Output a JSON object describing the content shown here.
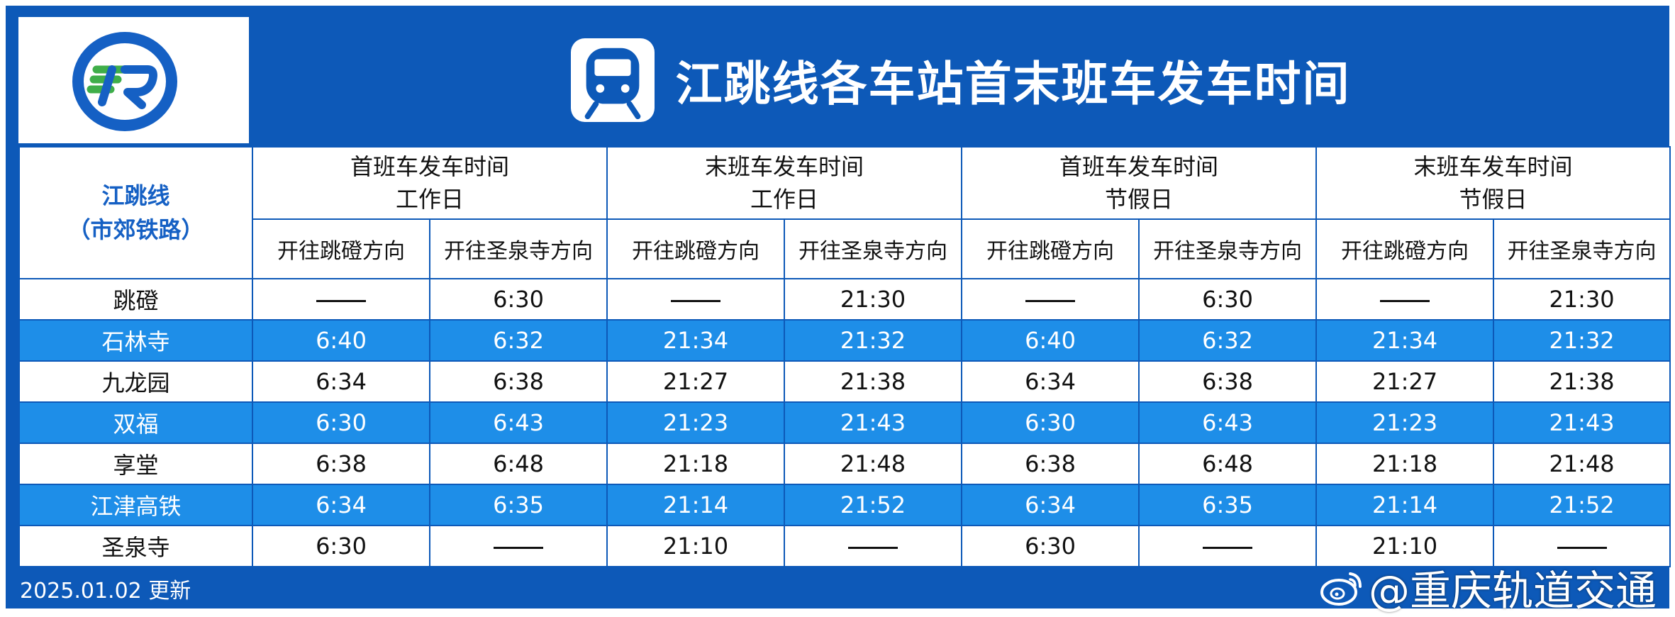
{
  "title": "江跳线各车站首末班车发车时间",
  "line": {
    "name": "江跳线",
    "subtitle": "（市郊铁路）"
  },
  "groups": [
    {
      "line1": "首班车发车时间",
      "line2": "工作日"
    },
    {
      "line1": "末班车发车时间",
      "line2": "工作日"
    },
    {
      "line1": "首班车发车时间",
      "line2": "节假日"
    },
    {
      "line1": "末班车发车时间",
      "line2": "节假日"
    }
  ],
  "directions": [
    "开往跳磴方向",
    "开往圣泉寺方向",
    "开往跳磴方向",
    "开往圣泉寺方向",
    "开往跳磴方向",
    "开往圣泉寺方向",
    "开往跳磴方向",
    "开往圣泉寺方向"
  ],
  "stations": [
    {
      "name": "跳磴",
      "times": [
        "——",
        "6:30",
        "——",
        "21:30",
        "——",
        "6:30",
        "——",
        "21:30"
      ]
    },
    {
      "name": "石林寺",
      "times": [
        "6:40",
        "6:32",
        "21:34",
        "21:32",
        "6:40",
        "6:32",
        "21:34",
        "21:32"
      ]
    },
    {
      "name": "九龙园",
      "times": [
        "6:34",
        "6:38",
        "21:27",
        "21:38",
        "6:34",
        "6:38",
        "21:27",
        "21:38"
      ]
    },
    {
      "name": "双福",
      "times": [
        "6:30",
        "6:43",
        "21:23",
        "21:43",
        "6:30",
        "6:43",
        "21:23",
        "21:43"
      ]
    },
    {
      "name": "享堂",
      "times": [
        "6:38",
        "6:48",
        "21:18",
        "21:48",
        "6:38",
        "6:48",
        "21:18",
        "21:48"
      ]
    },
    {
      "name": "江津高铁",
      "times": [
        "6:34",
        "6:35",
        "21:14",
        "21:52",
        "6:34",
        "6:35",
        "21:14",
        "21:52"
      ]
    },
    {
      "name": "圣泉寺",
      "times": [
        "6:30",
        "——",
        "21:10",
        "——",
        "6:30",
        "——",
        "21:10",
        "——"
      ]
    }
  ],
  "footer": {
    "updated": "2025.01.02 更新"
  },
  "watermark": "@重庆轨道交通",
  "colors": {
    "frame": "#0d59b8",
    "highlight_row": "#1e8ee8",
    "line_name": "#1560c4",
    "logo_green": "#3fae49"
  },
  "icons": {
    "logo": "rail-logo-icon",
    "title": "metro-train-icon",
    "watermark": "weibo-icon"
  }
}
